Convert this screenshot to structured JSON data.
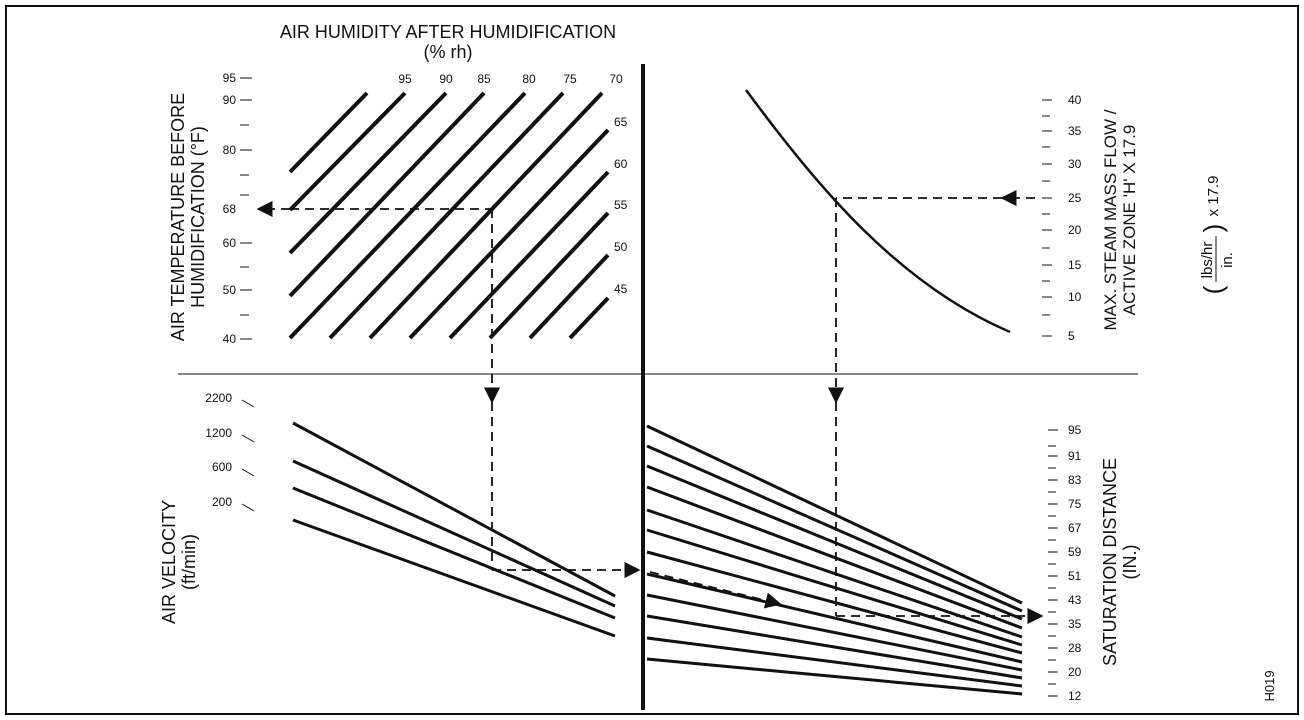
{
  "title_line1": "AIR HUMIDITY AFTER HUMIDIFICATION",
  "title_line2": "(% rh)",
  "temp_axis_label_line1": "AIR TEMPERATURE BEFORE",
  "temp_axis_label_line2": "HUMIDIFICATION (°F)",
  "temp_ticks": [
    "95",
    "90",
    "80",
    "68",
    "60",
    "50",
    "40"
  ],
  "rh_top_labels": [
    "95",
    "90",
    "85",
    "80",
    "75",
    "70"
  ],
  "rh_right_labels": [
    "65",
    "60",
    "55",
    "50",
    "45"
  ],
  "steam_axis_label_line1": "MAX. STEAM MASS FLOW /",
  "steam_axis_label_line2": "ACTIVE ZONE 'H' X 17.9",
  "steam_unit_num": "lbs/hr",
  "steam_unit_den": "in.",
  "steam_unit_factor": "x 17.9",
  "steam_ticks": [
    "40",
    "35",
    "30",
    "25",
    "20",
    "15",
    "10",
    "5"
  ],
  "velocity_axis_label_line1": "AIR VELOCITY",
  "velocity_axis_label_line2": "(ft/min)",
  "velocity_ticks": [
    "2200",
    "1200",
    "600",
    "200"
  ],
  "saturation_axis_label_line1": "SATURATION DISTANCE",
  "saturation_axis_label_line2": "(IN.)",
  "saturation_ticks": [
    "95",
    "91",
    "83",
    "75",
    "67",
    "59",
    "51",
    "43",
    "35",
    "28",
    "20",
    "12"
  ],
  "figure_code": "H019"
}
